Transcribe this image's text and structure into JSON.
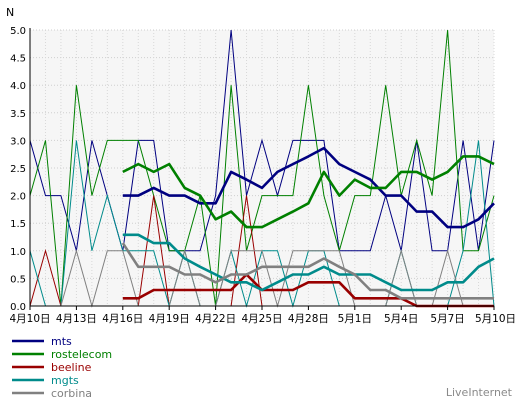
{
  "chart_data": {
    "type": "line",
    "ylabel": "N",
    "ylim": [
      0,
      5
    ],
    "yticks": [
      "0.0",
      "0.5",
      "1.0",
      "1.5",
      "2.0",
      "2.5",
      "3.0",
      "3.5",
      "4.0",
      "4.5",
      "5.0"
    ],
    "xlim": [
      0,
      30
    ],
    "x_tick_labels": [
      {
        "x": 0,
        "label": "4月10日"
      },
      {
        "x": 3,
        "label": "4月13日"
      },
      {
        "x": 6,
        "label": "4月16日"
      },
      {
        "x": 9,
        "label": "4月19日"
      },
      {
        "x": 12,
        "label": "4月22日"
      },
      {
        "x": 15,
        "label": "4月25日"
      },
      {
        "x": 18,
        "label": "4月28日"
      },
      {
        "x": 21,
        "label": "5月1日"
      },
      {
        "x": 24,
        "label": "5月4日"
      },
      {
        "x": 27,
        "label": "5月7日"
      },
      {
        "x": 30,
        "label": "5月10日"
      }
    ],
    "grid": true,
    "legend_position": "bottom-left",
    "series": [
      {
        "name": "mts",
        "color": "#000080",
        "daily": [
          3,
          2,
          2,
          1,
          3,
          2,
          1,
          3,
          3,
          1,
          1,
          1,
          2,
          5,
          2,
          3,
          2,
          3,
          3,
          3,
          1,
          1,
          1,
          2,
          1,
          3,
          1,
          1,
          3,
          1,
          3
        ],
        "avg": {
          "start": 6,
          "values": [
            2.0,
            2.0,
            2.14,
            2.0,
            2.0,
            1.86,
            1.86,
            2.43,
            2.29,
            2.14,
            2.43,
            2.57,
            2.71,
            2.86,
            2.57,
            2.43,
            2.29,
            2.0,
            2.0,
            1.71,
            1.71,
            1.43,
            1.43,
            1.57,
            1.86
          ]
        }
      },
      {
        "name": "rostelecom",
        "color": "#008000",
        "daily": [
          2,
          3,
          0,
          4,
          2,
          3,
          3,
          3,
          2,
          1,
          1,
          2,
          0,
          4,
          1,
          2,
          2,
          2,
          4,
          2,
          1,
          2,
          2,
          4,
          2,
          3,
          2,
          5,
          1,
          1,
          2
        ],
        "avg": {
          "start": 6,
          "values": [
            2.43,
            2.57,
            2.43,
            2.57,
            2.14,
            2.0,
            1.57,
            1.71,
            1.43,
            1.43,
            1.57,
            1.71,
            1.86,
            2.43,
            2.0,
            2.29,
            2.14,
            2.14,
            2.43,
            2.43,
            2.29,
            2.43,
            2.71,
            2.71,
            2.57
          ]
        }
      },
      {
        "name": "beeline",
        "color": "#990000",
        "daily": [
          0,
          1,
          0,
          0,
          0,
          0,
          0,
          0,
          2,
          0,
          0,
          0,
          0,
          0,
          2,
          0,
          0,
          0,
          0,
          0,
          0,
          0,
          0,
          0,
          0,
          0,
          0,
          0,
          0,
          0,
          0
        ],
        "avg": {
          "start": 6,
          "values": [
            0.14,
            0.14,
            0.29,
            0.29,
            0.29,
            0.29,
            0.29,
            0.29,
            0.57,
            0.29,
            0.29,
            0.29,
            0.43,
            0.43,
            0.43,
            0.14,
            0.14,
            0.14,
            0.14,
            0.0,
            0.0,
            0.0,
            0.0,
            0.0,
            0.0
          ]
        }
      },
      {
        "name": "mgts",
        "color": "#008b8b",
        "daily": [
          1,
          0,
          0,
          3,
          1,
          2,
          1,
          1,
          1,
          0,
          1,
          0,
          0,
          1,
          0,
          1,
          1,
          0,
          1,
          1,
          0,
          0,
          0,
          0,
          1,
          0,
          0,
          0,
          1,
          3,
          0
        ],
        "avg": {
          "start": 6,
          "values": [
            1.29,
            1.29,
            1.14,
            1.14,
            0.86,
            0.71,
            0.57,
            0.43,
            0.43,
            0.29,
            0.43,
            0.57,
            0.57,
            0.71,
            0.57,
            0.57,
            0.57,
            0.43,
            0.29,
            0.29,
            0.29,
            0.43,
            0.43,
            0.71,
            0.86
          ]
        }
      },
      {
        "name": "corbina",
        "color": "#808080",
        "daily": [
          0,
          0,
          0,
          1,
          0,
          1,
          1,
          0,
          0,
          0,
          1,
          0,
          0,
          1,
          1,
          1,
          0,
          1,
          1,
          1,
          1,
          0,
          0,
          0,
          1,
          0,
          0,
          1,
          0,
          0,
          0
        ],
        "avg": {
          "start": 6,
          "values": [
            1.14,
            0.71,
            0.71,
            0.71,
            0.57,
            0.57,
            0.43,
            0.57,
            0.57,
            0.71,
            0.71,
            0.71,
            0.71,
            0.86,
            0.71,
            0.57,
            0.29,
            0.29,
            0.14,
            0.14,
            0.14,
            0.14,
            0.14,
            0.14,
            0.14
          ]
        }
      }
    ]
  },
  "footer": {
    "brand": "LiveInternet"
  }
}
